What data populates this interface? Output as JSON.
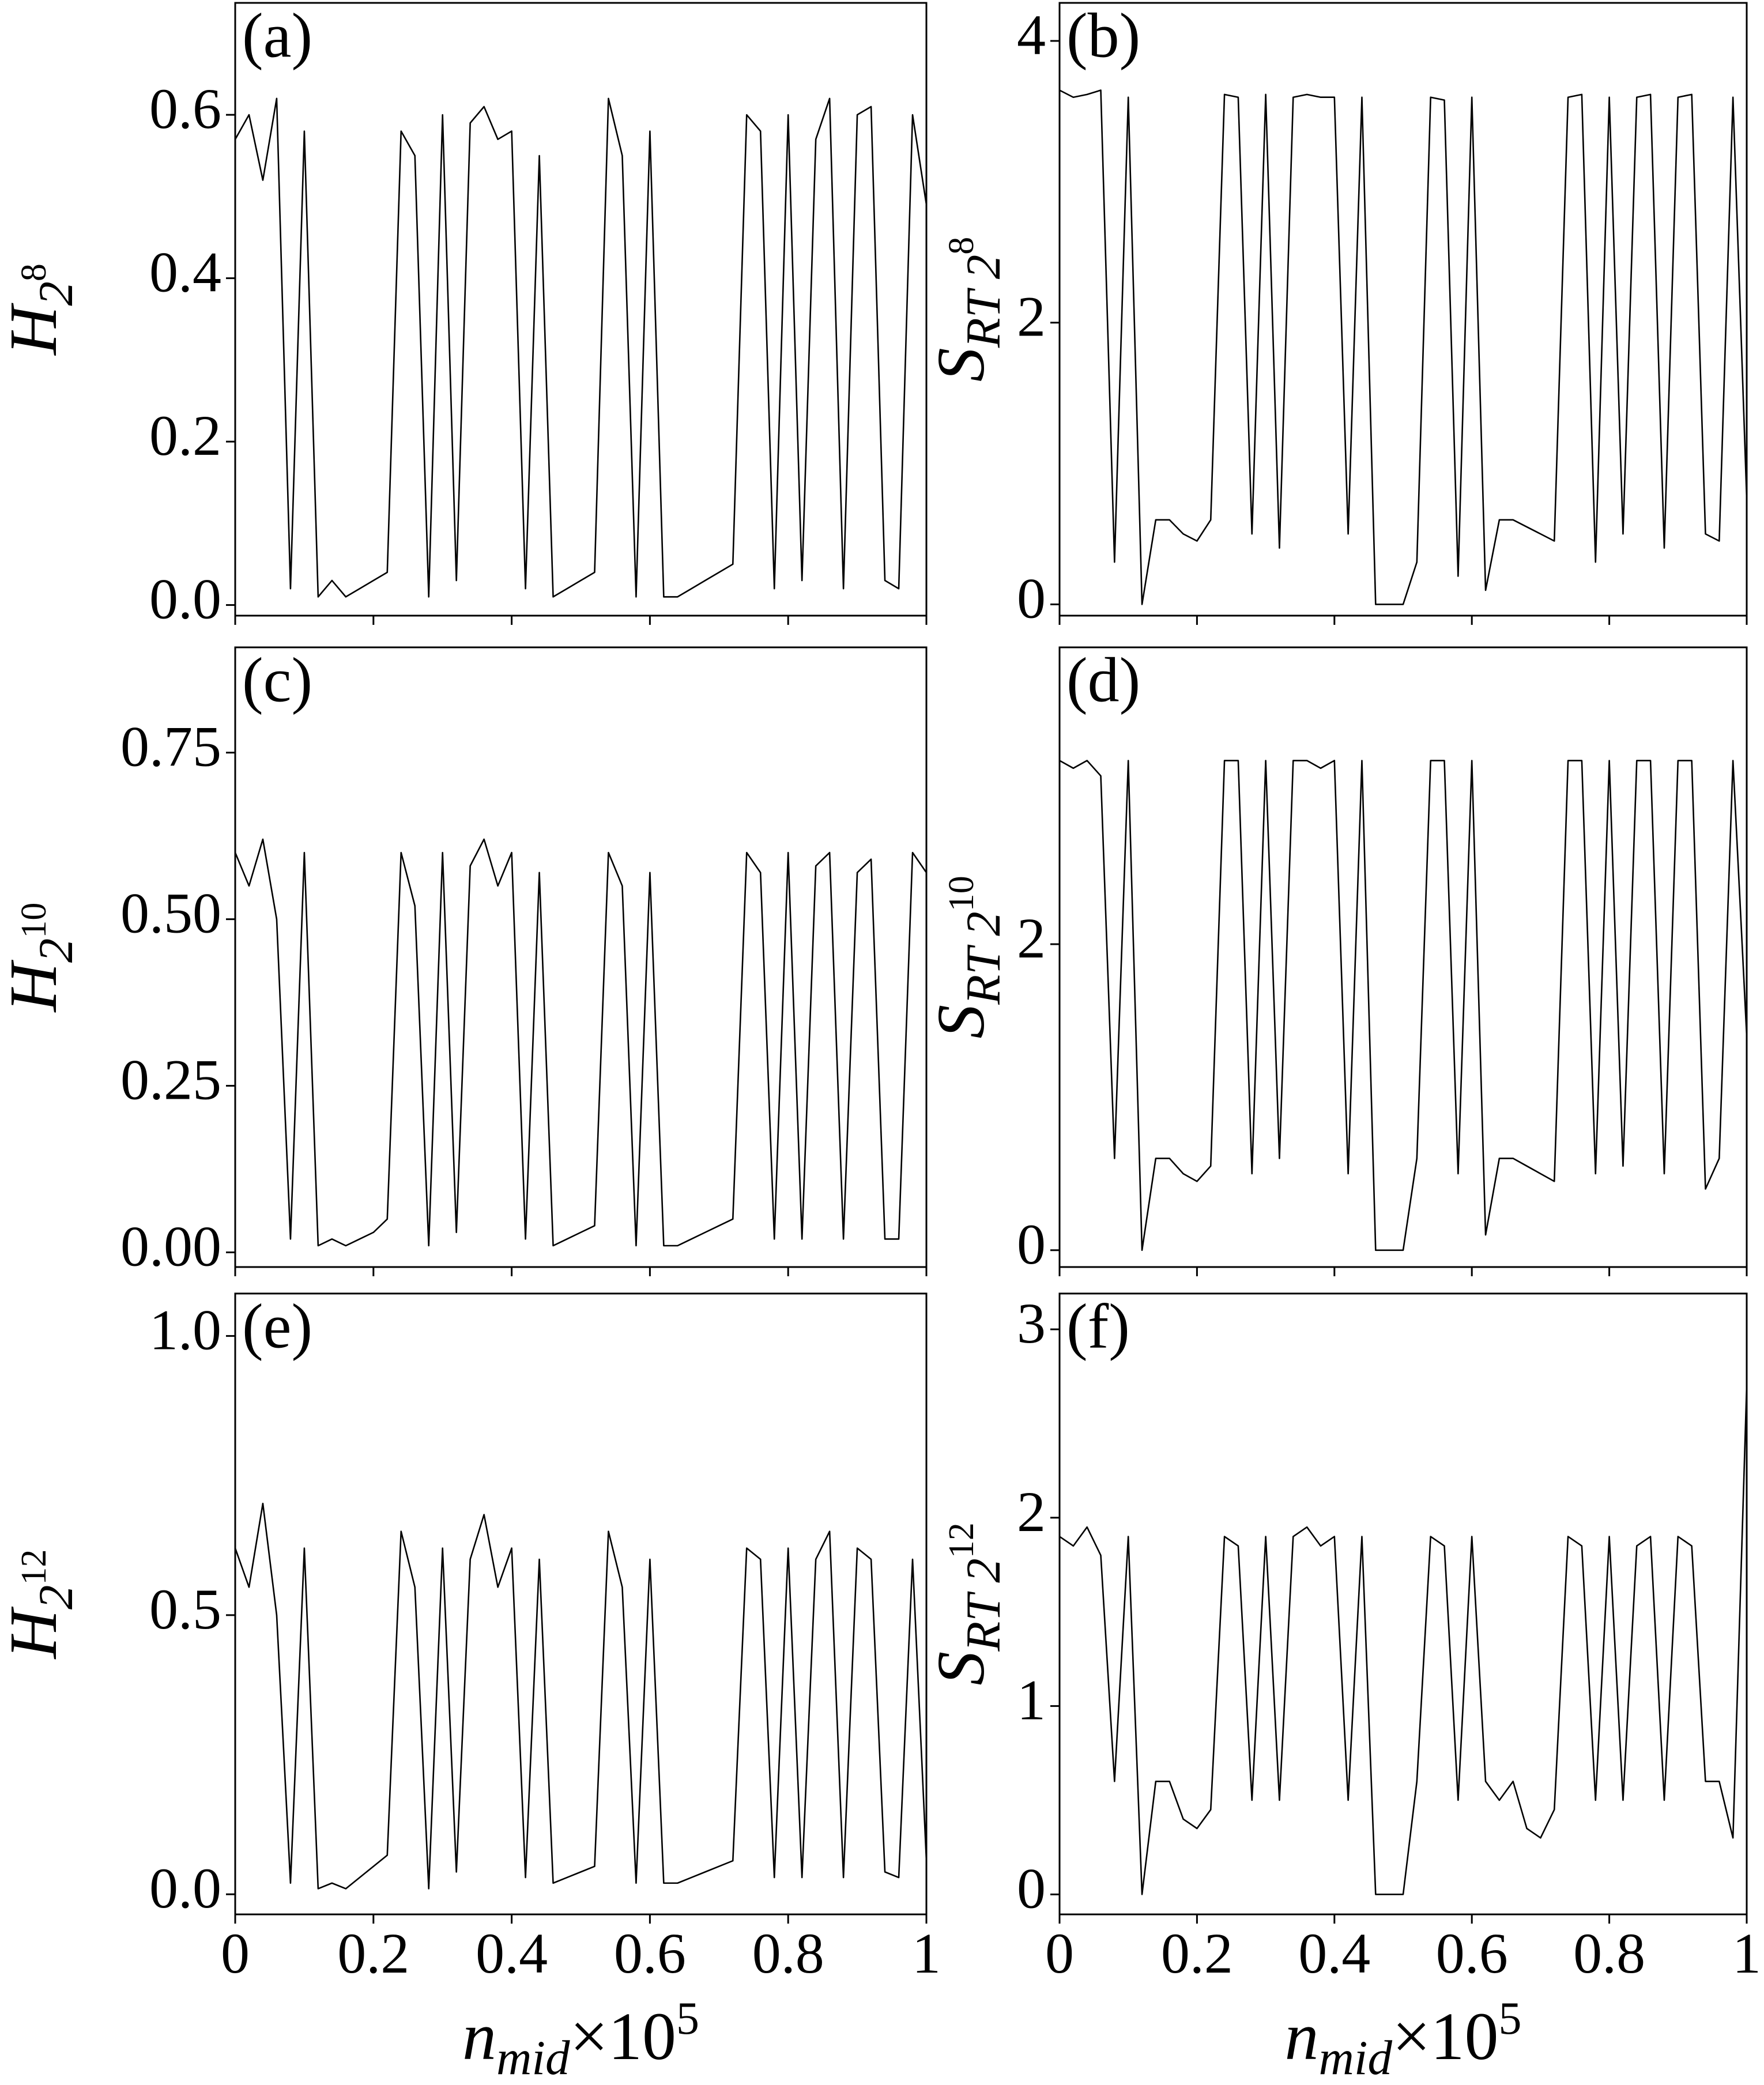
{
  "chart_data": [
    {
      "type": "line",
      "annotation": "(a)",
      "ylabel": [
        "H",
        "2",
        "8"
      ],
      "color": "#000000",
      "x": [
        0,
        0.02,
        0.04,
        0.06,
        0.08,
        0.1,
        0.12,
        0.14,
        0.16,
        0.18,
        0.2,
        0.22,
        0.24,
        0.26,
        0.28,
        0.3,
        0.32,
        0.34,
        0.36,
        0.38,
        0.4,
        0.42,
        0.44,
        0.46,
        0.48,
        0.5,
        0.52,
        0.54,
        0.56,
        0.58,
        0.6,
        0.62,
        0.64,
        0.66,
        0.68,
        0.7,
        0.72,
        0.74,
        0.76,
        0.78,
        0.8,
        0.82,
        0.84,
        0.86,
        0.88,
        0.9,
        0.92,
        0.94,
        0.96,
        0.98,
        1
      ],
      "values": [
        0.57,
        0.6,
        0.52,
        0.62,
        0.02,
        0.58,
        0.01,
        0.03,
        0.01,
        0.02,
        0.03,
        0.04,
        0.58,
        0.55,
        0.01,
        0.6,
        0.03,
        0.59,
        0.61,
        0.57,
        0.58,
        0.02,
        0.55,
        0.01,
        0.02,
        0.03,
        0.04,
        0.62,
        0.55,
        0.01,
        0.58,
        0.01,
        0.01,
        0.02,
        0.03,
        0.04,
        0.05,
        0.6,
        0.58,
        0.02,
        0.6,
        0.03,
        0.57,
        0.62,
        0.02,
        0.6,
        0.61,
        0.03,
        0.02,
        0.6,
        0.49
      ],
      "xlim": [
        0,
        1
      ],
      "xticks": [
        0,
        0.2,
        0.4,
        0.6,
        0.8,
        1
      ],
      "ylim": [
        -0.013,
        0.737
      ],
      "yticks": [
        {
          "value": 0,
          "label": "0.0"
        },
        0.2,
        0.4,
        0.6
      ]
    },
    {
      "type": "line",
      "annotation": "(b)",
      "ylabel": [
        "S",
        "RT 2",
        "8"
      ],
      "color": "#000000",
      "x": [
        0,
        0.02,
        0.04,
        0.06,
        0.08,
        0.1,
        0.12,
        0.14,
        0.16,
        0.18,
        0.2,
        0.22,
        0.24,
        0.26,
        0.28,
        0.3,
        0.32,
        0.34,
        0.36,
        0.38,
        0.4,
        0.42,
        0.44,
        0.46,
        0.48,
        0.5,
        0.52,
        0.54,
        0.56,
        0.58,
        0.6,
        0.62,
        0.64,
        0.66,
        0.68,
        0.7,
        0.72,
        0.74,
        0.76,
        0.78,
        0.8,
        0.82,
        0.84,
        0.86,
        0.88,
        0.9,
        0.92,
        0.94,
        0.96,
        0.98,
        1
      ],
      "values": [
        3.65,
        3.6,
        3.62,
        3.65,
        0.3,
        3.6,
        0,
        0.6,
        0.6,
        0.5,
        0.45,
        0.6,
        3.62,
        3.6,
        0.5,
        3.62,
        0.4,
        3.6,
        3.62,
        3.6,
        3.6,
        0.5,
        3.6,
        0,
        0,
        0,
        0.3,
        3.6,
        3.58,
        0.2,
        3.6,
        0.1,
        0.6,
        0.6,
        0.55,
        0.5,
        0.45,
        3.6,
        3.62,
        0.3,
        3.6,
        0.5,
        3.6,
        3.62,
        0.4,
        3.6,
        3.62,
        0.5,
        0.45,
        3.6,
        0.75
      ],
      "xlim": [
        0,
        1
      ],
      "xticks": [
        0,
        0.2,
        0.4,
        0.6,
        0.8,
        1
      ],
      "ylim": [
        -0.08,
        4.27
      ],
      "yticks": [
        0,
        2,
        4
      ]
    },
    {
      "type": "line",
      "annotation": "(c)",
      "ylabel": [
        "H",
        "2",
        "10"
      ],
      "color": "#000000",
      "x": [
        0,
        0.02,
        0.04,
        0.06,
        0.08,
        0.1,
        0.12,
        0.14,
        0.16,
        0.18,
        0.2,
        0.22,
        0.24,
        0.26,
        0.28,
        0.3,
        0.32,
        0.34,
        0.36,
        0.38,
        0.4,
        0.42,
        0.44,
        0.46,
        0.48,
        0.5,
        0.52,
        0.54,
        0.56,
        0.58,
        0.6,
        0.62,
        0.64,
        0.66,
        0.68,
        0.7,
        0.72,
        0.74,
        0.76,
        0.78,
        0.8,
        0.82,
        0.84,
        0.86,
        0.88,
        0.9,
        0.92,
        0.94,
        0.96,
        0.98,
        1
      ],
      "values": [
        0.6,
        0.55,
        0.62,
        0.5,
        0.02,
        0.6,
        0.01,
        0.02,
        0.01,
        0.02,
        0.03,
        0.05,
        0.6,
        0.52,
        0.01,
        0.6,
        0.03,
        0.58,
        0.62,
        0.55,
        0.6,
        0.02,
        0.57,
        0.01,
        0.02,
        0.03,
        0.04,
        0.6,
        0.55,
        0.01,
        0.57,
        0.01,
        0.01,
        0.02,
        0.03,
        0.04,
        0.05,
        0.6,
        0.57,
        0.02,
        0.6,
        0.02,
        0.58,
        0.6,
        0.02,
        0.57,
        0.59,
        0.02,
        0.02,
        0.6,
        0.57
      ],
      "xlim": [
        0,
        1
      ],
      "xticks": [
        0,
        0.2,
        0.4,
        0.6,
        0.8,
        1
      ],
      "ylim": [
        -0.022,
        0.908
      ],
      "yticks": [
        {
          "value": 0,
          "label": "0.00"
        },
        {
          "value": 0.25,
          "label": "0.25"
        },
        {
          "value": 0.5,
          "label": "0.50"
        },
        {
          "value": 0.75,
          "label": "0.75"
        }
      ]
    },
    {
      "type": "line",
      "annotation": "(d)",
      "ylabel": [
        "S",
        "RT 2",
        "10"
      ],
      "color": "#000000",
      "x": [
        0,
        0.02,
        0.04,
        0.06,
        0.08,
        0.1,
        0.12,
        0.14,
        0.16,
        0.18,
        0.2,
        0.22,
        0.24,
        0.26,
        0.28,
        0.3,
        0.32,
        0.34,
        0.36,
        0.38,
        0.4,
        0.42,
        0.44,
        0.46,
        0.48,
        0.5,
        0.52,
        0.54,
        0.56,
        0.58,
        0.6,
        0.62,
        0.64,
        0.66,
        0.68,
        0.7,
        0.72,
        0.74,
        0.76,
        0.78,
        0.8,
        0.82,
        0.84,
        0.86,
        0.88,
        0.9,
        0.92,
        0.94,
        0.96,
        0.98,
        1
      ],
      "values": [
        3.2,
        3.15,
        3.2,
        3.1,
        0.6,
        3.2,
        0,
        0.6,
        0.6,
        0.5,
        0.45,
        0.55,
        3.2,
        3.2,
        0.5,
        3.2,
        0.6,
        3.2,
        3.2,
        3.15,
        3.2,
        0.5,
        3.2,
        0,
        0,
        0,
        0.6,
        3.2,
        3.2,
        0.5,
        3.2,
        0.1,
        0.6,
        0.6,
        0.55,
        0.5,
        0.45,
        3.2,
        3.2,
        0.5,
        3.2,
        0.55,
        3.2,
        3.2,
        0.5,
        3.2,
        3.2,
        0.4,
        0.6,
        3.2,
        1.4
      ],
      "xlim": [
        0,
        1
      ],
      "xticks": [
        0,
        0.2,
        0.4,
        0.6,
        0.8,
        1
      ],
      "ylim": [
        -0.11,
        3.94
      ],
      "yticks": [
        0,
        2
      ]
    },
    {
      "type": "line",
      "annotation": "(e)",
      "ylabel": [
        "H",
        "2",
        "12"
      ],
      "xlabel": [
        "n",
        "mid",
        "×10",
        "5"
      ],
      "color": "#000000",
      "x": [
        0,
        0.02,
        0.04,
        0.06,
        0.08,
        0.1,
        0.12,
        0.14,
        0.16,
        0.18,
        0.2,
        0.22,
        0.24,
        0.26,
        0.28,
        0.3,
        0.32,
        0.34,
        0.36,
        0.38,
        0.4,
        0.42,
        0.44,
        0.46,
        0.48,
        0.5,
        0.52,
        0.54,
        0.56,
        0.58,
        0.6,
        0.62,
        0.64,
        0.66,
        0.68,
        0.7,
        0.72,
        0.74,
        0.76,
        0.78,
        0.8,
        0.82,
        0.84,
        0.86,
        0.88,
        0.9,
        0.92,
        0.94,
        0.96,
        0.98,
        1
      ],
      "values": [
        0.62,
        0.55,
        0.7,
        0.5,
        0.02,
        0.62,
        0.01,
        0.02,
        0.01,
        0.03,
        0.05,
        0.07,
        0.65,
        0.55,
        0.01,
        0.62,
        0.04,
        0.6,
        0.68,
        0.55,
        0.62,
        0.03,
        0.6,
        0.02,
        0.03,
        0.04,
        0.05,
        0.65,
        0.55,
        0.02,
        0.6,
        0.02,
        0.02,
        0.03,
        0.04,
        0.05,
        0.06,
        0.62,
        0.6,
        0.03,
        0.62,
        0.03,
        0.6,
        0.65,
        0.03,
        0.62,
        0.6,
        0.04,
        0.03,
        0.6,
        0.06
      ],
      "xlim": [
        0,
        1
      ],
      "xticks": [
        0,
        0.2,
        0.4,
        0.6,
        0.8,
        1
      ],
      "ylim": [
        -0.036,
        1.076
      ],
      "yticks": [
        {
          "value": 0,
          "label": "0.0"
        },
        0.5,
        {
          "value": 1,
          "label": "1.0"
        }
      ]
    },
    {
      "type": "line",
      "annotation": "(f)",
      "ylabel": [
        "S",
        "RT 2",
        "12"
      ],
      "xlabel": [
        "n",
        "mid",
        "×10",
        "5"
      ],
      "color": "#000000",
      "x": [
        0,
        0.02,
        0.04,
        0.06,
        0.08,
        0.1,
        0.12,
        0.14,
        0.16,
        0.18,
        0.2,
        0.22,
        0.24,
        0.26,
        0.28,
        0.3,
        0.32,
        0.34,
        0.36,
        0.38,
        0.4,
        0.42,
        0.44,
        0.46,
        0.48,
        0.5,
        0.52,
        0.54,
        0.56,
        0.58,
        0.6,
        0.62,
        0.64,
        0.66,
        0.68,
        0.7,
        0.72,
        0.74,
        0.76,
        0.78,
        0.8,
        0.82,
        0.84,
        0.86,
        0.88,
        0.9,
        0.92,
        0.94,
        0.96,
        0.98,
        1
      ],
      "values": [
        1.9,
        1.85,
        1.95,
        1.8,
        0.6,
        1.9,
        0,
        0.6,
        0.6,
        0.4,
        0.35,
        0.45,
        1.9,
        1.85,
        0.5,
        1.9,
        0.5,
        1.9,
        1.95,
        1.85,
        1.9,
        0.5,
        1.9,
        0,
        0,
        0,
        0.6,
        1.9,
        1.85,
        0.5,
        1.9,
        0.6,
        0.5,
        0.6,
        0.35,
        0.3,
        0.45,
        1.9,
        1.85,
        0.5,
        1.9,
        0.5,
        1.85,
        1.9,
        0.5,
        1.9,
        1.85,
        0.6,
        0.6,
        0.3,
        2.7
      ],
      "xlim": [
        0,
        1
      ],
      "xticks": [
        0,
        0.2,
        0.4,
        0.6,
        0.8,
        1
      ],
      "ylim": [
        -0.106,
        3.19
      ],
      "yticks": [
        0,
        1,
        2,
        3
      ]
    }
  ]
}
